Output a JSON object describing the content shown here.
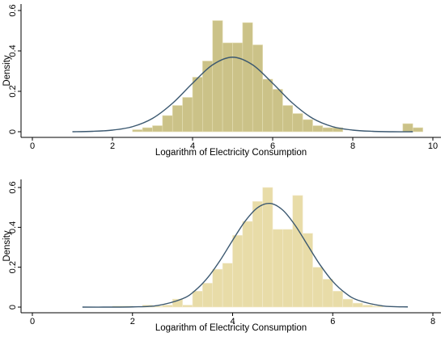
{
  "chart_data": [
    {
      "type": "histogram",
      "xlabel": "Logarithm of Electricity Consumption",
      "ylabel": "Density",
      "bins": [
        2.5,
        2.75,
        3.0,
        3.25,
        3.5,
        3.75,
        4.0,
        4.25,
        4.5,
        4.75,
        5.0,
        5.25,
        5.5,
        5.75,
        6.0,
        6.25,
        6.5,
        6.75,
        7.0,
        7.25,
        7.5,
        7.75,
        8.0,
        8.25,
        8.5,
        8.75,
        9.0,
        9.25,
        9.5,
        9.75
      ],
      "values": [
        0.01,
        0.02,
        0.03,
        0.08,
        0.13,
        0.17,
        0.27,
        0.35,
        0.55,
        0.44,
        0.44,
        0.54,
        0.43,
        0.26,
        0.21,
        0.13,
        0.09,
        0.06,
        0.03,
        0.02,
        0.02,
        0,
        0,
        0,
        0,
        0,
        0,
        0.04,
        0.02
      ],
      "color": "#cbc288",
      "edge": "#e6e0b8",
      "curve": {
        "color": "#3b5870",
        "x": [
          1,
          1.5,
          2,
          2.5,
          3,
          3.5,
          4,
          4.5,
          5,
          5.5,
          6,
          6.5,
          7,
          7.5,
          8,
          8.5,
          9,
          9.5
        ],
        "values": [
          0,
          0.002,
          0.008,
          0.025,
          0.066,
          0.141,
          0.24,
          0.331,
          0.369,
          0.331,
          0.24,
          0.141,
          0.066,
          0.025,
          0.008,
          0.002,
          0,
          0
        ]
      },
      "xlim": [
        0,
        10
      ],
      "ylim": [
        0,
        0.6
      ],
      "xticks": [
        0,
        2,
        4,
        6,
        8,
        10
      ],
      "yticks": [
        0,
        0.2,
        0.4,
        0.6
      ]
    },
    {
      "type": "histogram",
      "xlabel": "Logarithm of Electricity Consumption",
      "ylabel": "Density",
      "bins": [
        1.6,
        1.8,
        2.0,
        2.2,
        2.4,
        2.6,
        2.8,
        3.0,
        3.2,
        3.4,
        3.6,
        3.8,
        4.0,
        4.2,
        4.4,
        4.6,
        4.8,
        5.0,
        5.2,
        5.4,
        5.6,
        5.8,
        6.0,
        6.2,
        6.4,
        6.6,
        6.8,
        7.0
      ],
      "values": [
        0.005,
        0.005,
        0,
        0.01,
        0.005,
        0.01,
        0.04,
        0.01,
        0.08,
        0.12,
        0.19,
        0.22,
        0.36,
        0.43,
        0.53,
        0.6,
        0.39,
        0.39,
        0.56,
        0.37,
        0.2,
        0.14,
        0.08,
        0.04,
        0.02,
        0.01,
        0.005
      ],
      "color": "#e8dca8",
      "edge": "#f3ecd0",
      "curve": {
        "color": "#3b5870",
        "x": [
          1,
          1.5,
          2,
          2.5,
          3,
          3.25,
          3.5,
          3.75,
          4,
          4.25,
          4.5,
          4.75,
          5,
          5.25,
          5.5,
          5.75,
          6,
          6.25,
          6.5,
          7,
          7.5
        ],
        "values": [
          0,
          0,
          0.001,
          0.008,
          0.042,
          0.083,
          0.147,
          0.234,
          0.335,
          0.431,
          0.499,
          0.52,
          0.487,
          0.41,
          0.31,
          0.211,
          0.129,
          0.071,
          0.035,
          0.006,
          0.001
        ]
      },
      "xlim": [
        0,
        8
      ],
      "ylim": [
        0,
        0.6
      ],
      "xticks": [
        0,
        2,
        4,
        6,
        8
      ],
      "yticks": [
        0,
        0.2,
        0.4,
        0.6
      ]
    }
  ]
}
